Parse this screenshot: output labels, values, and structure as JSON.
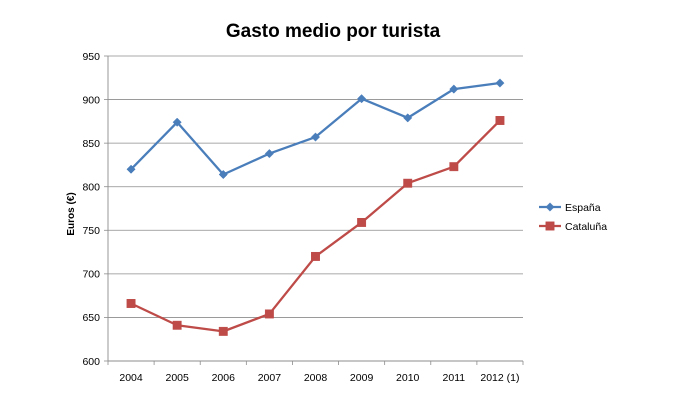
{
  "chart_data": {
    "type": "line",
    "title": "Gasto medio por turista",
    "xlabel": "",
    "ylabel": "Euros (€)",
    "categories": [
      "2004",
      "2005",
      "2006",
      "2007",
      "2008",
      "2009",
      "2010",
      "2011",
      "2012 (1)"
    ],
    "ylim": [
      600,
      950
    ],
    "yticks": [
      600,
      650,
      700,
      750,
      800,
      850,
      900,
      950
    ],
    "grid": true,
    "legend_position": "right",
    "series": [
      {
        "name": "España",
        "marker": "diamond",
        "color": "#4A7EBB",
        "values": [
          820,
          874,
          814,
          838,
          857,
          901,
          879,
          912,
          919
        ]
      },
      {
        "name": "Cataluña",
        "marker": "square",
        "color": "#BE4B48",
        "values": [
          666,
          641,
          634,
          654,
          720,
          759,
          804,
          823,
          876
        ]
      }
    ]
  }
}
